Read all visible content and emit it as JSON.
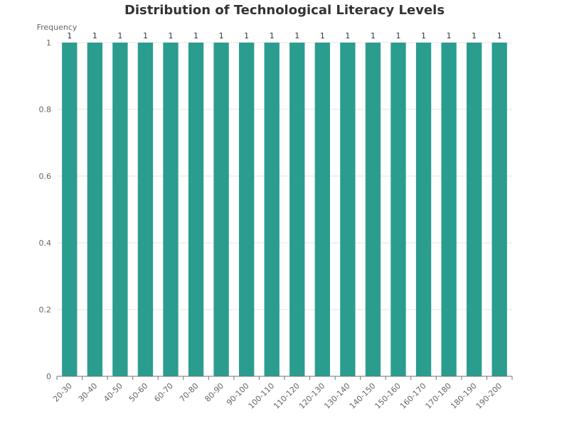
{
  "chart_data": {
    "type": "bar",
    "title": "Distribution of Technological Literacy Levels",
    "xlabel": "",
    "ylabel": "Frequency",
    "categories": [
      "20-30",
      "30-40",
      "40-50",
      "50-60",
      "60-70",
      "70-80",
      "80-90",
      "90-100",
      "100-110",
      "110-120",
      "120-130",
      "130-140",
      "140-150",
      "150-160",
      "160-170",
      "170-180",
      "180-190",
      "190-200"
    ],
    "values": [
      1,
      1,
      1,
      1,
      1,
      1,
      1,
      1,
      1,
      1,
      1,
      1,
      1,
      1,
      1,
      1,
      1,
      1
    ],
    "ylim": [
      0,
      1
    ],
    "yticks": [
      "0",
      "0.2",
      "0.4",
      "0.6",
      "0.8",
      "1"
    ],
    "grid": true,
    "legend": "none",
    "bar_color": "#2a9d8f"
  }
}
